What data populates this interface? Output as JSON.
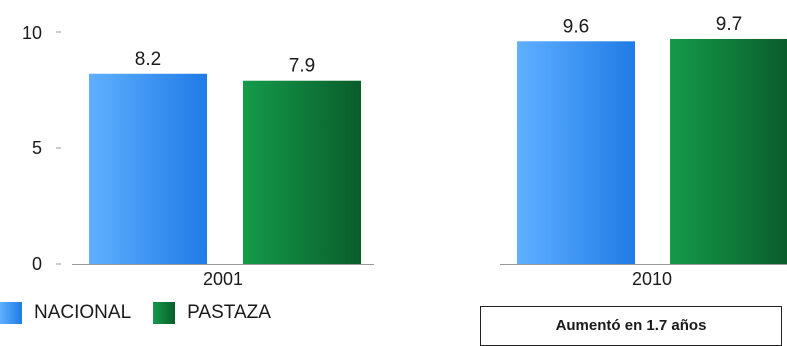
{
  "chart_data": {
    "type": "bar",
    "categories": [
      "2001",
      "2010"
    ],
    "series": [
      {
        "name": "NACIONAL",
        "values": [
          8.2,
          9.6
        ]
      },
      {
        "name": "PASTAZA",
        "values": [
          7.9,
          9.7
        ]
      }
    ],
    "y_ticks": [
      "0",
      "5",
      "10"
    ],
    "ylim": [
      0,
      10
    ],
    "grid": false,
    "legend_position": "bottom-left",
    "colors": {
      "NACIONAL": [
        "#5fb0ff",
        "#1f7be6"
      ],
      "PASTAZA": [
        "#149b4a",
        "#0a5d2b"
      ]
    }
  },
  "note": {
    "text": "Aumentó en 1.7 años"
  }
}
